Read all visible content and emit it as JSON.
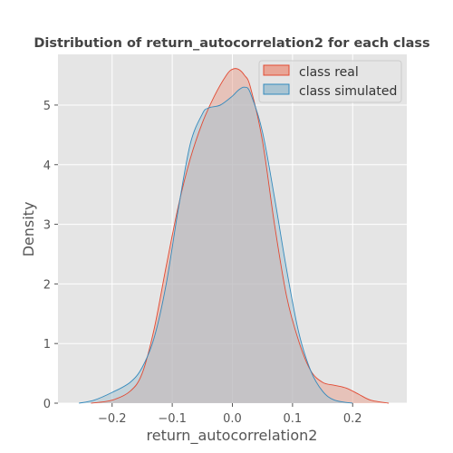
{
  "chart_data": {
    "type": "area",
    "title": "Distribution of return_autocorrelation2 for each class",
    "xlabel": "return_autocorrelation2",
    "ylabel": "Density",
    "xlim": [
      -0.29,
      0.29
    ],
    "ylim": [
      0,
      5.85
    ],
    "xticks": [
      -0.2,
      -0.1,
      0.0,
      0.1,
      0.2
    ],
    "xtick_labels": [
      "−0.2",
      "−0.1",
      "0.0",
      "0.1",
      "0.2"
    ],
    "yticks": [
      0,
      1,
      2,
      3,
      4,
      5
    ],
    "ytick_labels": [
      "0",
      "1",
      "2",
      "3",
      "4",
      "5"
    ],
    "grid": true,
    "legend_position": "top-right",
    "background": "#e5e5e5",
    "series": [
      {
        "name": "class real",
        "line_color": "#e24a33",
        "fill_color": "#e8a596",
        "x": [
          -0.235,
          -0.2,
          -0.17,
          -0.15,
          -0.13,
          -0.11,
          -0.09,
          -0.07,
          -0.05,
          -0.03,
          -0.01,
          0.0,
          0.01,
          0.02,
          0.03,
          0.05,
          0.07,
          0.09,
          0.11,
          0.13,
          0.15,
          0.17,
          0.19,
          0.21,
          0.23,
          0.26
        ],
        "y": [
          0.0,
          0.05,
          0.2,
          0.5,
          1.25,
          2.3,
          3.3,
          4.1,
          4.7,
          5.15,
          5.5,
          5.6,
          5.6,
          5.5,
          5.3,
          4.4,
          3.0,
          1.8,
          1.05,
          0.55,
          0.35,
          0.3,
          0.25,
          0.15,
          0.05,
          0.0
        ]
      },
      {
        "name": "class simulated",
        "line_color": "#348abd",
        "fill_color": "#a9c4d2",
        "x": [
          -0.255,
          -0.23,
          -0.2,
          -0.17,
          -0.15,
          -0.13,
          -0.11,
          -0.09,
          -0.07,
          -0.05,
          -0.04,
          -0.02,
          0.0,
          0.01,
          0.02,
          0.03,
          0.05,
          0.07,
          0.09,
          0.11,
          0.13,
          0.15,
          0.17,
          0.2
        ],
        "y": [
          0.0,
          0.05,
          0.18,
          0.35,
          0.6,
          1.1,
          2.0,
          3.25,
          4.35,
          4.85,
          4.95,
          5.0,
          5.15,
          5.25,
          5.3,
          5.2,
          4.55,
          3.45,
          2.25,
          1.2,
          0.55,
          0.2,
          0.05,
          0.0
        ]
      }
    ]
  }
}
